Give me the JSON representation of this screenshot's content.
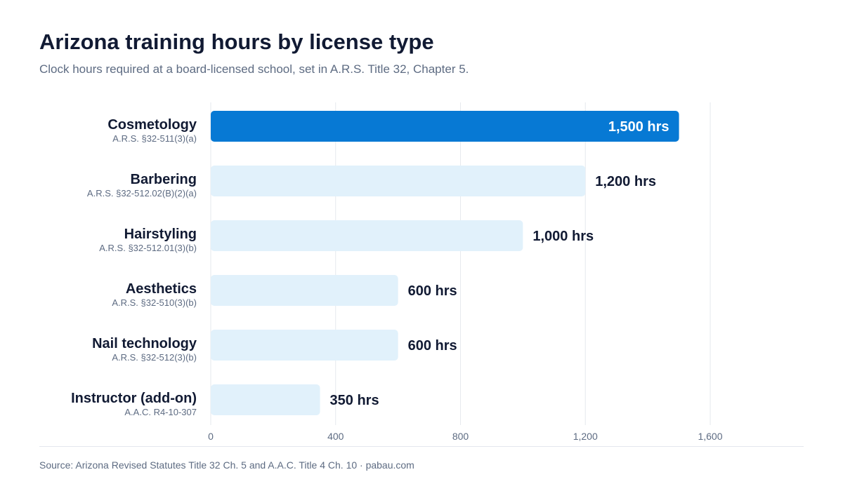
{
  "header": {
    "title": "Arizona training hours by license type",
    "subtitle": "Clock hours required at a board-licensed school, set in A.R.S. Title 32, Chapter 5."
  },
  "footer": {
    "source": "Source: Arizona Revised Statutes Title 32 Ch. 5 and A.A.C. Title 4 Ch. 10  ·  pabau.com"
  },
  "colors": {
    "highlight_bar": "#0779d4",
    "muted_bar": "#e1f1fb",
    "highlight_text": "#ffffff",
    "muted_text": "#111a33",
    "grid": "#e6e9ee"
  },
  "chart_data": {
    "type": "bar",
    "orientation": "horizontal",
    "categories": [
      "Cosmetology",
      "Barbering",
      "Hairstyling",
      "Aesthetics",
      "Nail technology",
      "Instructor (add-on)"
    ],
    "citations": [
      "A.R.S. §32-511(3)(a)",
      "A.R.S. §32-512.02(B)(2)(a)",
      "A.R.S. §32-512.01(3)(b)",
      "A.R.S. §32-510(3)(b)",
      "A.R.S. §32-512(3)(b)",
      "A.A.C. R4-10-307"
    ],
    "values": [
      1500,
      1200,
      1000,
      600,
      600,
      350
    ],
    "value_labels": [
      "1,500 hrs",
      "1,200 hrs",
      "1,000 hrs",
      "600 hrs",
      "600 hrs",
      "350 hrs"
    ],
    "highlighted": [
      true,
      false,
      false,
      false,
      false,
      false
    ],
    "x_ticks": [
      0,
      400,
      800,
      1200,
      1600
    ],
    "x_tick_labels": [
      "0",
      "400",
      "800",
      "1,200",
      "1,600"
    ],
    "xlim": [
      0,
      1900
    ],
    "grid": true,
    "legend": false
  }
}
